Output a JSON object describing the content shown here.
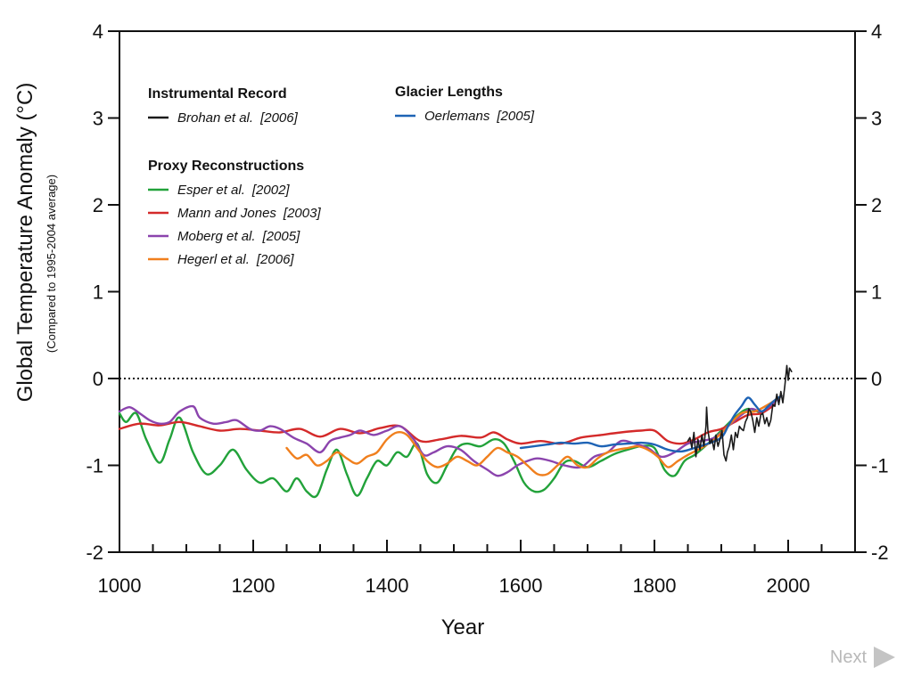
{
  "nav": {
    "next_label": "Next",
    "next_icon": "play-triangle-icon"
  },
  "chart_data": {
    "type": "line",
    "title": "",
    "xlabel": "Year",
    "ylabel": "Global Temperature Anomaly (°C)",
    "ylabel_sub": "(Compared to 1995-2004 average)",
    "xlim": [
      1000,
      2100
    ],
    "ylim": [
      -2,
      4
    ],
    "xticks": [
      1000,
      1200,
      1400,
      1600,
      1800,
      2000
    ],
    "yticks": [
      -2,
      -1,
      0,
      1,
      2,
      3,
      4
    ],
    "x_minor_step": 50,
    "zero_line": "dotted",
    "legend": {
      "groups": [
        {
          "heading": "Instrumental Record",
          "entries": [
            {
              "series": "Brohan",
              "author": "Brohan et al.",
              "year": "[2006]"
            }
          ]
        },
        {
          "heading": "Glacier Lengths",
          "entries": [
            {
              "series": "Oerlemans",
              "author": "Oerlemans",
              "year": "[2005]"
            }
          ]
        },
        {
          "heading": "Proxy Reconstructions",
          "entries": [
            {
              "series": "Esper",
              "author": "Esper et al.",
              "year": "[2002]"
            },
            {
              "series": "Mann",
              "author": "Mann and Jones",
              "year": "[2003]"
            },
            {
              "series": "Moberg",
              "author": "Moberg et al.",
              "year": "[2005]"
            },
            {
              "series": "Hegerl",
              "author": "Hegerl et al.",
              "year": "[2006]"
            }
          ]
        }
      ]
    },
    "series": [
      {
        "name": "Esper",
        "color": "#22a23a",
        "x": [
          1000,
          1010,
          1025,
          1040,
          1060,
          1075,
          1090,
          1110,
          1130,
          1150,
          1170,
          1190,
          1210,
          1230,
          1250,
          1265,
          1280,
          1295,
          1310,
          1325,
          1340,
          1355,
          1370,
          1385,
          1400,
          1415,
          1430,
          1445,
          1460,
          1475,
          1490,
          1505,
          1520,
          1540,
          1560,
          1575,
          1590,
          1605,
          1620,
          1635,
          1650,
          1665,
          1680,
          1700,
          1720,
          1740,
          1760,
          1780,
          1800,
          1815,
          1830,
          1845,
          1860,
          1880,
          1900,
          1920,
          1940,
          1960
        ],
        "y": [
          -0.4,
          -0.5,
          -0.4,
          -0.7,
          -0.97,
          -0.7,
          -0.45,
          -0.85,
          -1.1,
          -1.0,
          -0.82,
          -1.05,
          -1.2,
          -1.15,
          -1.3,
          -1.15,
          -1.3,
          -1.35,
          -1.05,
          -0.82,
          -1.1,
          -1.35,
          -1.15,
          -0.95,
          -1.0,
          -0.85,
          -0.9,
          -0.75,
          -1.1,
          -1.2,
          -1.0,
          -0.8,
          -0.75,
          -0.78,
          -0.7,
          -0.75,
          -0.95,
          -1.2,
          -1.3,
          -1.28,
          -1.15,
          -0.97,
          -0.95,
          -1.02,
          -0.95,
          -0.87,
          -0.82,
          -0.78,
          -0.8,
          -1.05,
          -1.12,
          -0.95,
          -0.88,
          -0.75,
          -0.6,
          -0.45,
          -0.35,
          -0.4
        ]
      },
      {
        "name": "Mann",
        "color": "#d42a2a",
        "x": [
          1000,
          1030,
          1060,
          1090,
          1120,
          1150,
          1180,
          1210,
          1240,
          1270,
          1300,
          1330,
          1360,
          1390,
          1420,
          1450,
          1480,
          1510,
          1540,
          1560,
          1580,
          1600,
          1630,
          1660,
          1690,
          1720,
          1750,
          1780,
          1800,
          1820,
          1840,
          1860,
          1880,
          1900,
          1920,
          1940,
          1960,
          1980
        ],
        "y": [
          -0.58,
          -0.52,
          -0.54,
          -0.5,
          -0.55,
          -0.6,
          -0.58,
          -0.6,
          -0.62,
          -0.58,
          -0.67,
          -0.58,
          -0.63,
          -0.57,
          -0.55,
          -0.72,
          -0.7,
          -0.66,
          -0.68,
          -0.62,
          -0.7,
          -0.75,
          -0.72,
          -0.75,
          -0.68,
          -0.65,
          -0.62,
          -0.6,
          -0.6,
          -0.72,
          -0.75,
          -0.7,
          -0.62,
          -0.58,
          -0.5,
          -0.42,
          -0.4,
          -0.3
        ]
      },
      {
        "name": "Moberg",
        "color": "#8b44ad",
        "x": [
          1000,
          1015,
          1030,
          1045,
          1060,
          1075,
          1090,
          1110,
          1120,
          1140,
          1160,
          1175,
          1195,
          1210,
          1225,
          1240,
          1260,
          1280,
          1300,
          1315,
          1330,
          1345,
          1360,
          1380,
          1400,
          1420,
          1440,
          1455,
          1470,
          1490,
          1510,
          1530,
          1550,
          1565,
          1580,
          1595,
          1610,
          1625,
          1645,
          1665,
          1690,
          1710,
          1730,
          1750,
          1770,
          1790,
          1810,
          1830,
          1850,
          1870,
          1890,
          1910,
          1930,
          1945,
          1960,
          1975,
          1990
        ],
        "y": [
          -0.38,
          -0.33,
          -0.4,
          -0.48,
          -0.52,
          -0.5,
          -0.38,
          -0.32,
          -0.45,
          -0.52,
          -0.5,
          -0.48,
          -0.58,
          -0.6,
          -0.55,
          -0.58,
          -0.68,
          -0.75,
          -0.85,
          -0.72,
          -0.68,
          -0.65,
          -0.6,
          -0.65,
          -0.6,
          -0.55,
          -0.7,
          -0.88,
          -0.85,
          -0.78,
          -0.82,
          -0.95,
          -1.05,
          -1.12,
          -1.08,
          -1.0,
          -0.95,
          -0.92,
          -0.95,
          -1.0,
          -1.02,
          -0.9,
          -0.85,
          -0.72,
          -0.75,
          -0.8,
          -0.9,
          -0.85,
          -0.75,
          -0.72,
          -0.68,
          -0.55,
          -0.42,
          -0.35,
          -0.38,
          -0.3,
          -0.2
        ]
      },
      {
        "name": "Hegerl",
        "color": "#f07f1d",
        "x": [
          1250,
          1265,
          1280,
          1295,
          1310,
          1325,
          1340,
          1355,
          1370,
          1385,
          1400,
          1415,
          1430,
          1445,
          1460,
          1475,
          1490,
          1505,
          1520,
          1535,
          1550,
          1565,
          1580,
          1595,
          1610,
          1625,
          1640,
          1655,
          1670,
          1685,
          1700,
          1715,
          1730,
          1745,
          1760,
          1775,
          1790,
          1805,
          1820,
          1835,
          1850,
          1870,
          1890,
          1910,
          1930,
          1950,
          1970,
          1990
        ],
        "y": [
          -0.8,
          -0.92,
          -0.88,
          -1.0,
          -0.95,
          -0.85,
          -0.92,
          -0.98,
          -0.9,
          -0.85,
          -0.7,
          -0.62,
          -0.65,
          -0.8,
          -0.95,
          -1.02,
          -0.98,
          -0.9,
          -0.95,
          -1.0,
          -0.9,
          -0.8,
          -0.85,
          -0.9,
          -1.0,
          -1.1,
          -1.1,
          -1.0,
          -0.9,
          -1.0,
          -1.02,
          -0.92,
          -0.85,
          -0.82,
          -0.8,
          -0.78,
          -0.82,
          -0.9,
          -1.02,
          -0.95,
          -0.88,
          -0.8,
          -0.7,
          -0.55,
          -0.4,
          -0.38,
          -0.3,
          -0.2
        ]
      },
      {
        "name": "Oerlemans",
        "color": "#1e63b5",
        "x": [
          1600,
          1620,
          1640,
          1660,
          1680,
          1700,
          1720,
          1740,
          1760,
          1780,
          1800,
          1820,
          1840,
          1860,
          1880,
          1900,
          1910,
          1920,
          1930,
          1940,
          1950,
          1960,
          1970,
          1980,
          1990
        ],
        "y": [
          -0.8,
          -0.78,
          -0.76,
          -0.74,
          -0.75,
          -0.74,
          -0.78,
          -0.76,
          -0.75,
          -0.74,
          -0.76,
          -0.82,
          -0.84,
          -0.8,
          -0.75,
          -0.68,
          -0.55,
          -0.42,
          -0.32,
          -0.22,
          -0.3,
          -0.38,
          -0.32,
          -0.25,
          -0.2
        ]
      },
      {
        "name": "Brohan",
        "color": "#1a1a1a",
        "x": [
          1850,
          1853,
          1856,
          1859,
          1862,
          1865,
          1868,
          1871,
          1874,
          1877,
          1878,
          1880,
          1883,
          1886,
          1889,
          1892,
          1895,
          1898,
          1901,
          1904,
          1907,
          1909,
          1912,
          1915,
          1918,
          1921,
          1924,
          1927,
          1930,
          1933,
          1936,
          1939,
          1941,
          1944,
          1947,
          1950,
          1953,
          1956,
          1959,
          1962,
          1965,
          1968,
          1971,
          1974,
          1977,
          1980,
          1983,
          1986,
          1989,
          1992,
          1995,
          1998,
          2000,
          2002,
          2005
        ],
        "y": [
          -0.72,
          -0.68,
          -0.8,
          -0.62,
          -0.9,
          -0.7,
          -0.82,
          -0.65,
          -0.78,
          -0.55,
          -0.33,
          -0.6,
          -0.75,
          -0.7,
          -0.82,
          -0.65,
          -0.78,
          -0.7,
          -0.6,
          -0.88,
          -0.95,
          -0.85,
          -0.78,
          -0.65,
          -0.82,
          -0.62,
          -0.68,
          -0.55,
          -0.58,
          -0.6,
          -0.5,
          -0.45,
          -0.35,
          -0.38,
          -0.48,
          -0.62,
          -0.45,
          -0.55,
          -0.42,
          -0.4,
          -0.52,
          -0.45,
          -0.55,
          -0.48,
          -0.3,
          -0.32,
          -0.18,
          -0.3,
          -0.15,
          -0.28,
          -0.08,
          0.15,
          -0.02,
          0.12,
          0.08
        ]
      }
    ]
  }
}
